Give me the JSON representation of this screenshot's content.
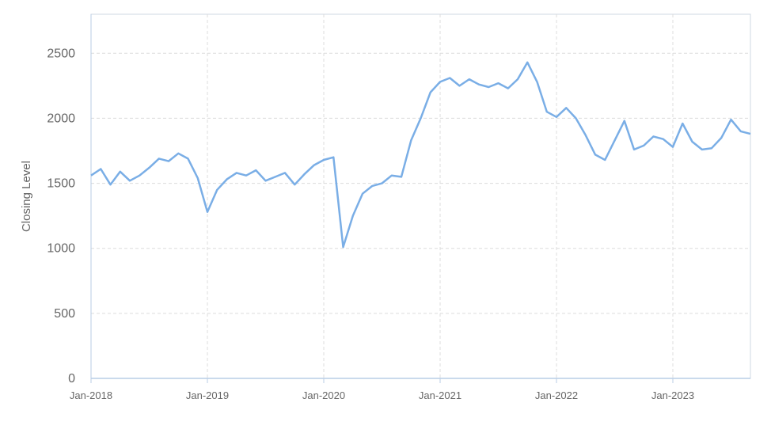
{
  "chart_data": {
    "type": "line",
    "title": "",
    "xlabel": "",
    "ylabel": "Closing Level",
    "ylim": [
      0,
      2800
    ],
    "yticks": [
      0,
      500,
      1000,
      1500,
      2000,
      2500
    ],
    "xlim": [
      "2018-01",
      "2023-09"
    ],
    "xticks": [
      "Jan-2018",
      "Jan-2019",
      "Jan-2020",
      "Jan-2021",
      "Jan-2022",
      "Jan-2023"
    ],
    "grid": true,
    "legend": "none",
    "series": [
      {
        "color": "#7aaee6",
        "points": [
          [
            "2018-01",
            1560
          ],
          [
            "2018-02",
            1610
          ],
          [
            "2018-03",
            1490
          ],
          [
            "2018-04",
            1590
          ],
          [
            "2018-05",
            1520
          ],
          [
            "2018-06",
            1560
          ],
          [
            "2018-07",
            1620
          ],
          [
            "2018-08",
            1690
          ],
          [
            "2018-09",
            1670
          ],
          [
            "2018-10",
            1730
          ],
          [
            "2018-11",
            1690
          ],
          [
            "2018-12",
            1540
          ],
          [
            "2019-01",
            1280
          ],
          [
            "2019-02",
            1450
          ],
          [
            "2019-03",
            1530
          ],
          [
            "2019-04",
            1580
          ],
          [
            "2019-05",
            1560
          ],
          [
            "2019-06",
            1600
          ],
          [
            "2019-07",
            1520
          ],
          [
            "2019-08",
            1550
          ],
          [
            "2019-09",
            1580
          ],
          [
            "2019-10",
            1490
          ],
          [
            "2019-11",
            1570
          ],
          [
            "2019-12",
            1640
          ],
          [
            "2020-01",
            1680
          ],
          [
            "2020-02",
            1700
          ],
          [
            "2020-03",
            1010
          ],
          [
            "2020-04",
            1250
          ],
          [
            "2020-05",
            1420
          ],
          [
            "2020-06",
            1480
          ],
          [
            "2020-07",
            1500
          ],
          [
            "2020-08",
            1560
          ],
          [
            "2020-09",
            1550
          ],
          [
            "2020-10",
            1830
          ],
          [
            "2020-11",
            2000
          ],
          [
            "2020-12",
            2200
          ],
          [
            "2021-01",
            2280
          ],
          [
            "2021-02",
            2310
          ],
          [
            "2021-03",
            2250
          ],
          [
            "2021-04",
            2300
          ],
          [
            "2021-05",
            2260
          ],
          [
            "2021-06",
            2240
          ],
          [
            "2021-07",
            2270
          ],
          [
            "2021-08",
            2230
          ],
          [
            "2021-09",
            2300
          ],
          [
            "2021-10",
            2430
          ],
          [
            "2021-11",
            2280
          ],
          [
            "2021-12",
            2050
          ],
          [
            "2022-01",
            2010
          ],
          [
            "2022-02",
            2080
          ],
          [
            "2022-03",
            2000
          ],
          [
            "2022-04",
            1870
          ],
          [
            "2022-05",
            1720
          ],
          [
            "2022-06",
            1680
          ],
          [
            "2022-07",
            1830
          ],
          [
            "2022-08",
            1980
          ],
          [
            "2022-09",
            1760
          ],
          [
            "2022-10",
            1790
          ],
          [
            "2022-11",
            1860
          ],
          [
            "2022-12",
            1840
          ],
          [
            "2023-01",
            1780
          ],
          [
            "2023-02",
            1960
          ],
          [
            "2023-03",
            1820
          ],
          [
            "2023-04",
            1760
          ],
          [
            "2023-05",
            1770
          ],
          [
            "2023-06",
            1850
          ],
          [
            "2023-07",
            1990
          ],
          [
            "2023-08",
            1900
          ],
          [
            "2023-09",
            1880
          ]
        ]
      }
    ]
  }
}
